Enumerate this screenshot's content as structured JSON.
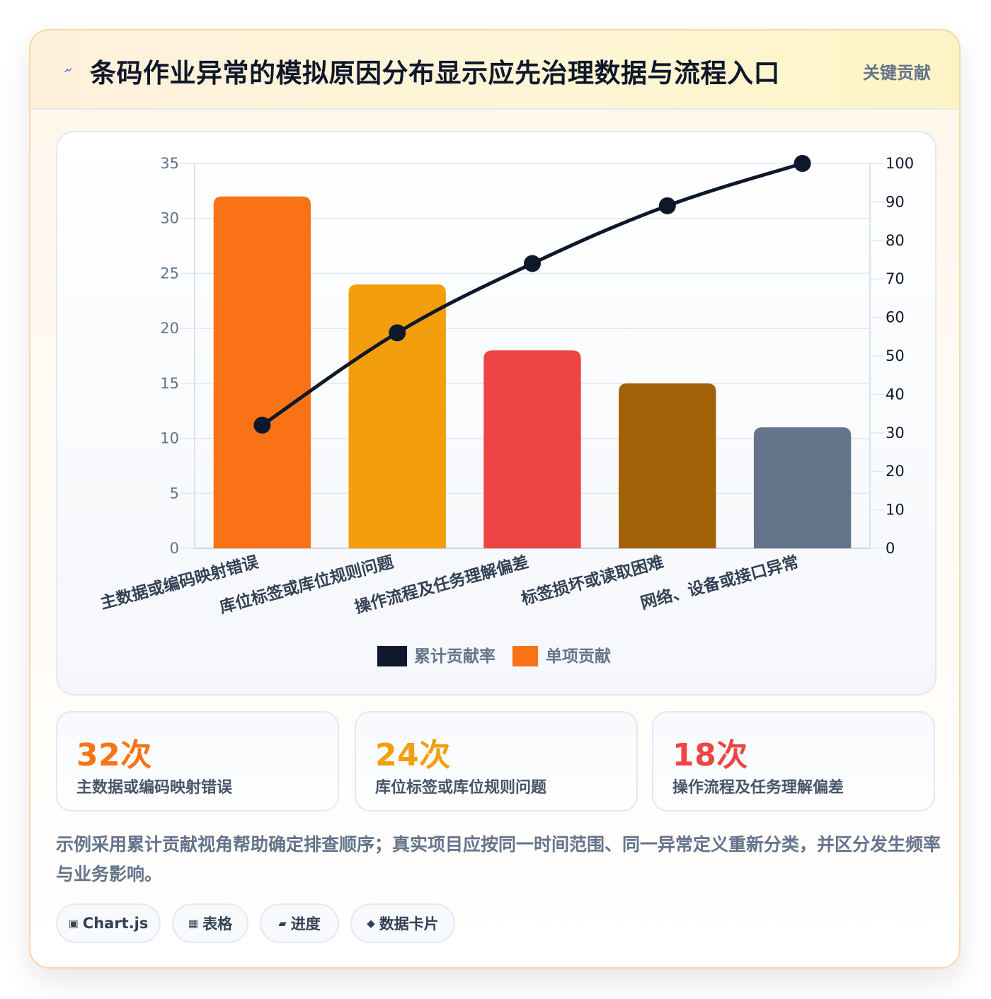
{
  "header": {
    "title": "条码作业异常的模拟原因分布显示应先治理数据与流程入口",
    "tag": "关键贡献",
    "icon": "lightning-icon"
  },
  "chart_data": {
    "type": "bar",
    "categories": [
      "主数据或编码映射错误",
      "库位标签或库位规则问题",
      "操作流程及任务理解偏差",
      "标签损坏或读取困难",
      "网络、设备或接口异常"
    ],
    "series": [
      {
        "name": "单项贡献",
        "type": "bar",
        "axis": "left",
        "values": [
          32,
          24,
          18,
          15,
          11
        ],
        "colors": [
          "#f97316",
          "#f29e0d",
          "#ef4444",
          "#a16207",
          "#64748b"
        ]
      },
      {
        "name": "累计贡献率",
        "type": "line",
        "axis": "right",
        "values": [
          32,
          56,
          74,
          89,
          100
        ],
        "color": "#0f172a"
      }
    ],
    "ylim": [
      0,
      35
    ],
    "y_ticks": [
      "0",
      "5",
      "10",
      "15",
      "20",
      "25",
      "30",
      "35"
    ],
    "y2lim": [
      0,
      100
    ],
    "y2_ticks": [
      "0",
      "10",
      "20",
      "30",
      "40",
      "50",
      "60",
      "70",
      "80",
      "90",
      "100"
    ],
    "grid": true,
    "legend_position": "bottom",
    "legend": [
      "累计贡献率",
      "单项贡献"
    ]
  },
  "stats": [
    {
      "value": "32次",
      "label": "主数据或编码映射错误",
      "color": "#f97316"
    },
    {
      "value": "24次",
      "label": "库位标签或库位规则问题",
      "color": "#f29e0d"
    },
    {
      "value": "18次",
      "label": "操作流程及任务理解偏差",
      "color": "#ef4444"
    }
  ],
  "note": "示例采用累计贡献视角帮助确定排查顺序；真实项目应按同一时间范围、同一异常定义重新分类，并区分发生频率与业务影响。",
  "chips": [
    {
      "icon": "▣",
      "label": "Chart.js"
    },
    {
      "icon": "▦",
      "label": "表格"
    },
    {
      "icon": "▰",
      "label": "进度"
    },
    {
      "icon": "◆",
      "label": "数据卡片"
    }
  ]
}
